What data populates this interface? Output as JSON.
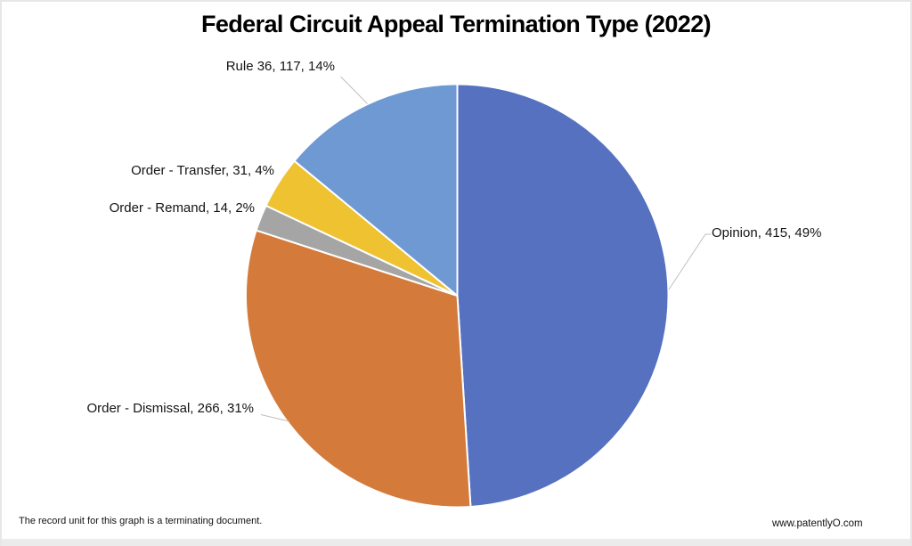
{
  "page": {
    "title": "Federal Circuit Appeal Termination Type (2022)",
    "footnote": "The record unit for this graph is a terminating document.",
    "source": "www.patentlyO.com"
  },
  "chart_data": {
    "type": "pie",
    "title": "Federal Circuit Appeal Termination Type (2022)",
    "start_angle_deg": 0,
    "direction": "clockwise",
    "legend": "none",
    "label_style": "outside, format: name, value, percent",
    "separator_color": "#FFFFFF",
    "leader_line_color": "#BFBFBF",
    "slices": [
      {
        "label": "Opinion",
        "value": 415,
        "pct": 49,
        "color": "#5571C0",
        "display": "Opinion, 415, 49%"
      },
      {
        "label": "Order - Dismissal",
        "value": 266,
        "pct": 31,
        "color": "#D47B3B",
        "display": "Order - Dismissal, 266, 31%"
      },
      {
        "label": "Order - Remand",
        "value": 14,
        "pct": 2,
        "color": "#A5A5A5",
        "display": "Order - Remand, 14, 2%"
      },
      {
        "label": "Order - Transfer",
        "value": 31,
        "pct": 4,
        "color": "#EEC231",
        "display": "Order - Transfer, 31, 4%"
      },
      {
        "label": "Rule 36",
        "value": 117,
        "pct": 14,
        "color": "#6F99D3",
        "display": "Rule 36, 117, 14%"
      }
    ]
  }
}
